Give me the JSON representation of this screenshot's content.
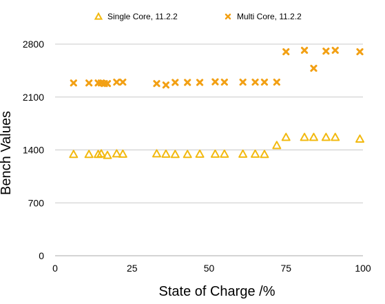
{
  "chart_data": {
    "type": "scatter",
    "xlabel": "State of Charge /%",
    "ylabel": "Bench Values",
    "xlim": [
      0,
      100
    ],
    "ylim": [
      0,
      2800
    ],
    "x_ticks": [
      "0",
      "25",
      "50",
      "75",
      "100"
    ],
    "y_ticks": [
      "0",
      "700",
      "1400",
      "2100",
      "2800"
    ],
    "grid": "horizontal-lines",
    "legend": "top",
    "series": [
      {
        "name": "Single Core, 11.2.2",
        "marker": "triangle",
        "color": "#f2b90f",
        "points": [
          [
            6,
            1342
          ],
          [
            11,
            1342
          ],
          [
            14,
            1342
          ],
          [
            15,
            1350
          ],
          [
            17,
            1329
          ],
          [
            20,
            1350
          ],
          [
            22,
            1346
          ],
          [
            33,
            1350
          ],
          [
            36,
            1346
          ],
          [
            39,
            1342
          ],
          [
            43,
            1342
          ],
          [
            47,
            1346
          ],
          [
            52,
            1346
          ],
          [
            55,
            1346
          ],
          [
            61,
            1346
          ],
          [
            65,
            1346
          ],
          [
            68,
            1342
          ],
          [
            72,
            1460
          ],
          [
            75,
            1568
          ],
          [
            81,
            1568
          ],
          [
            84,
            1568
          ],
          [
            88,
            1568
          ],
          [
            91,
            1568
          ],
          [
            99,
            1545
          ]
        ]
      },
      {
        "name": "Multi Core, 11.2.2",
        "marker": "x",
        "color": "#f2a014",
        "points": [
          [
            6,
            2286
          ],
          [
            11,
            2286
          ],
          [
            14,
            2286
          ],
          [
            15,
            2286
          ],
          [
            16,
            2278
          ],
          [
            17,
            2278
          ],
          [
            20,
            2297
          ],
          [
            22,
            2297
          ],
          [
            33,
            2278
          ],
          [
            36,
            2259
          ],
          [
            39,
            2293
          ],
          [
            43,
            2293
          ],
          [
            47,
            2293
          ],
          [
            52,
            2301
          ],
          [
            55,
            2297
          ],
          [
            61,
            2297
          ],
          [
            65,
            2297
          ],
          [
            68,
            2297
          ],
          [
            72,
            2297
          ],
          [
            75,
            2699
          ],
          [
            81,
            2718
          ],
          [
            84,
            2480
          ],
          [
            88,
            2707
          ],
          [
            91,
            2718
          ],
          [
            99,
            2699
          ]
        ]
      }
    ]
  }
}
